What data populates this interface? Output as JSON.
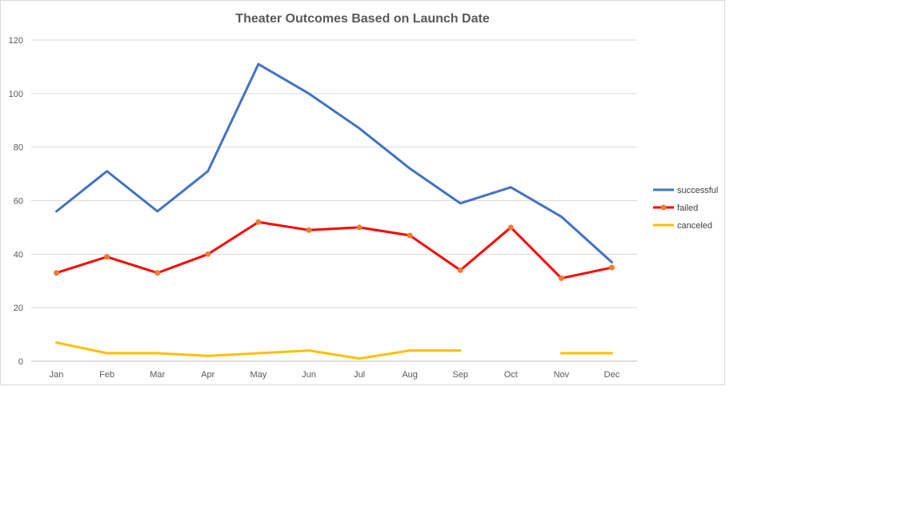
{
  "chart_data": {
    "type": "line",
    "title": "Theater Outcomes Based on Launch Date",
    "xlabel": "",
    "ylabel": "",
    "categories": [
      "Jan",
      "Feb",
      "Mar",
      "Apr",
      "May",
      "Jun",
      "Jul",
      "Aug",
      "Sep",
      "Oct",
      "Nov",
      "Dec"
    ],
    "ylim": [
      0,
      120
    ],
    "yticks": [
      0,
      20,
      40,
      60,
      80,
      100,
      120
    ],
    "grid": true,
    "legend_position": "right",
    "series": [
      {
        "name": "successful",
        "color": "#4472c4",
        "markers": false,
        "values": [
          56,
          71,
          56,
          71,
          111,
          100,
          87,
          72,
          59,
          65,
          54,
          37
        ]
      },
      {
        "name": "failed",
        "color": "#ff0000",
        "marker_color": "#ed7d31",
        "markers": true,
        "values": [
          33,
          39,
          33,
          40,
          52,
          49,
          50,
          47,
          34,
          50,
          31,
          35
        ]
      },
      {
        "name": "canceled",
        "color": "#ffc000",
        "markers": false,
        "values": [
          7,
          3,
          3,
          2,
          3,
          4,
          1,
          4,
          4,
          null,
          3,
          3
        ]
      }
    ]
  }
}
